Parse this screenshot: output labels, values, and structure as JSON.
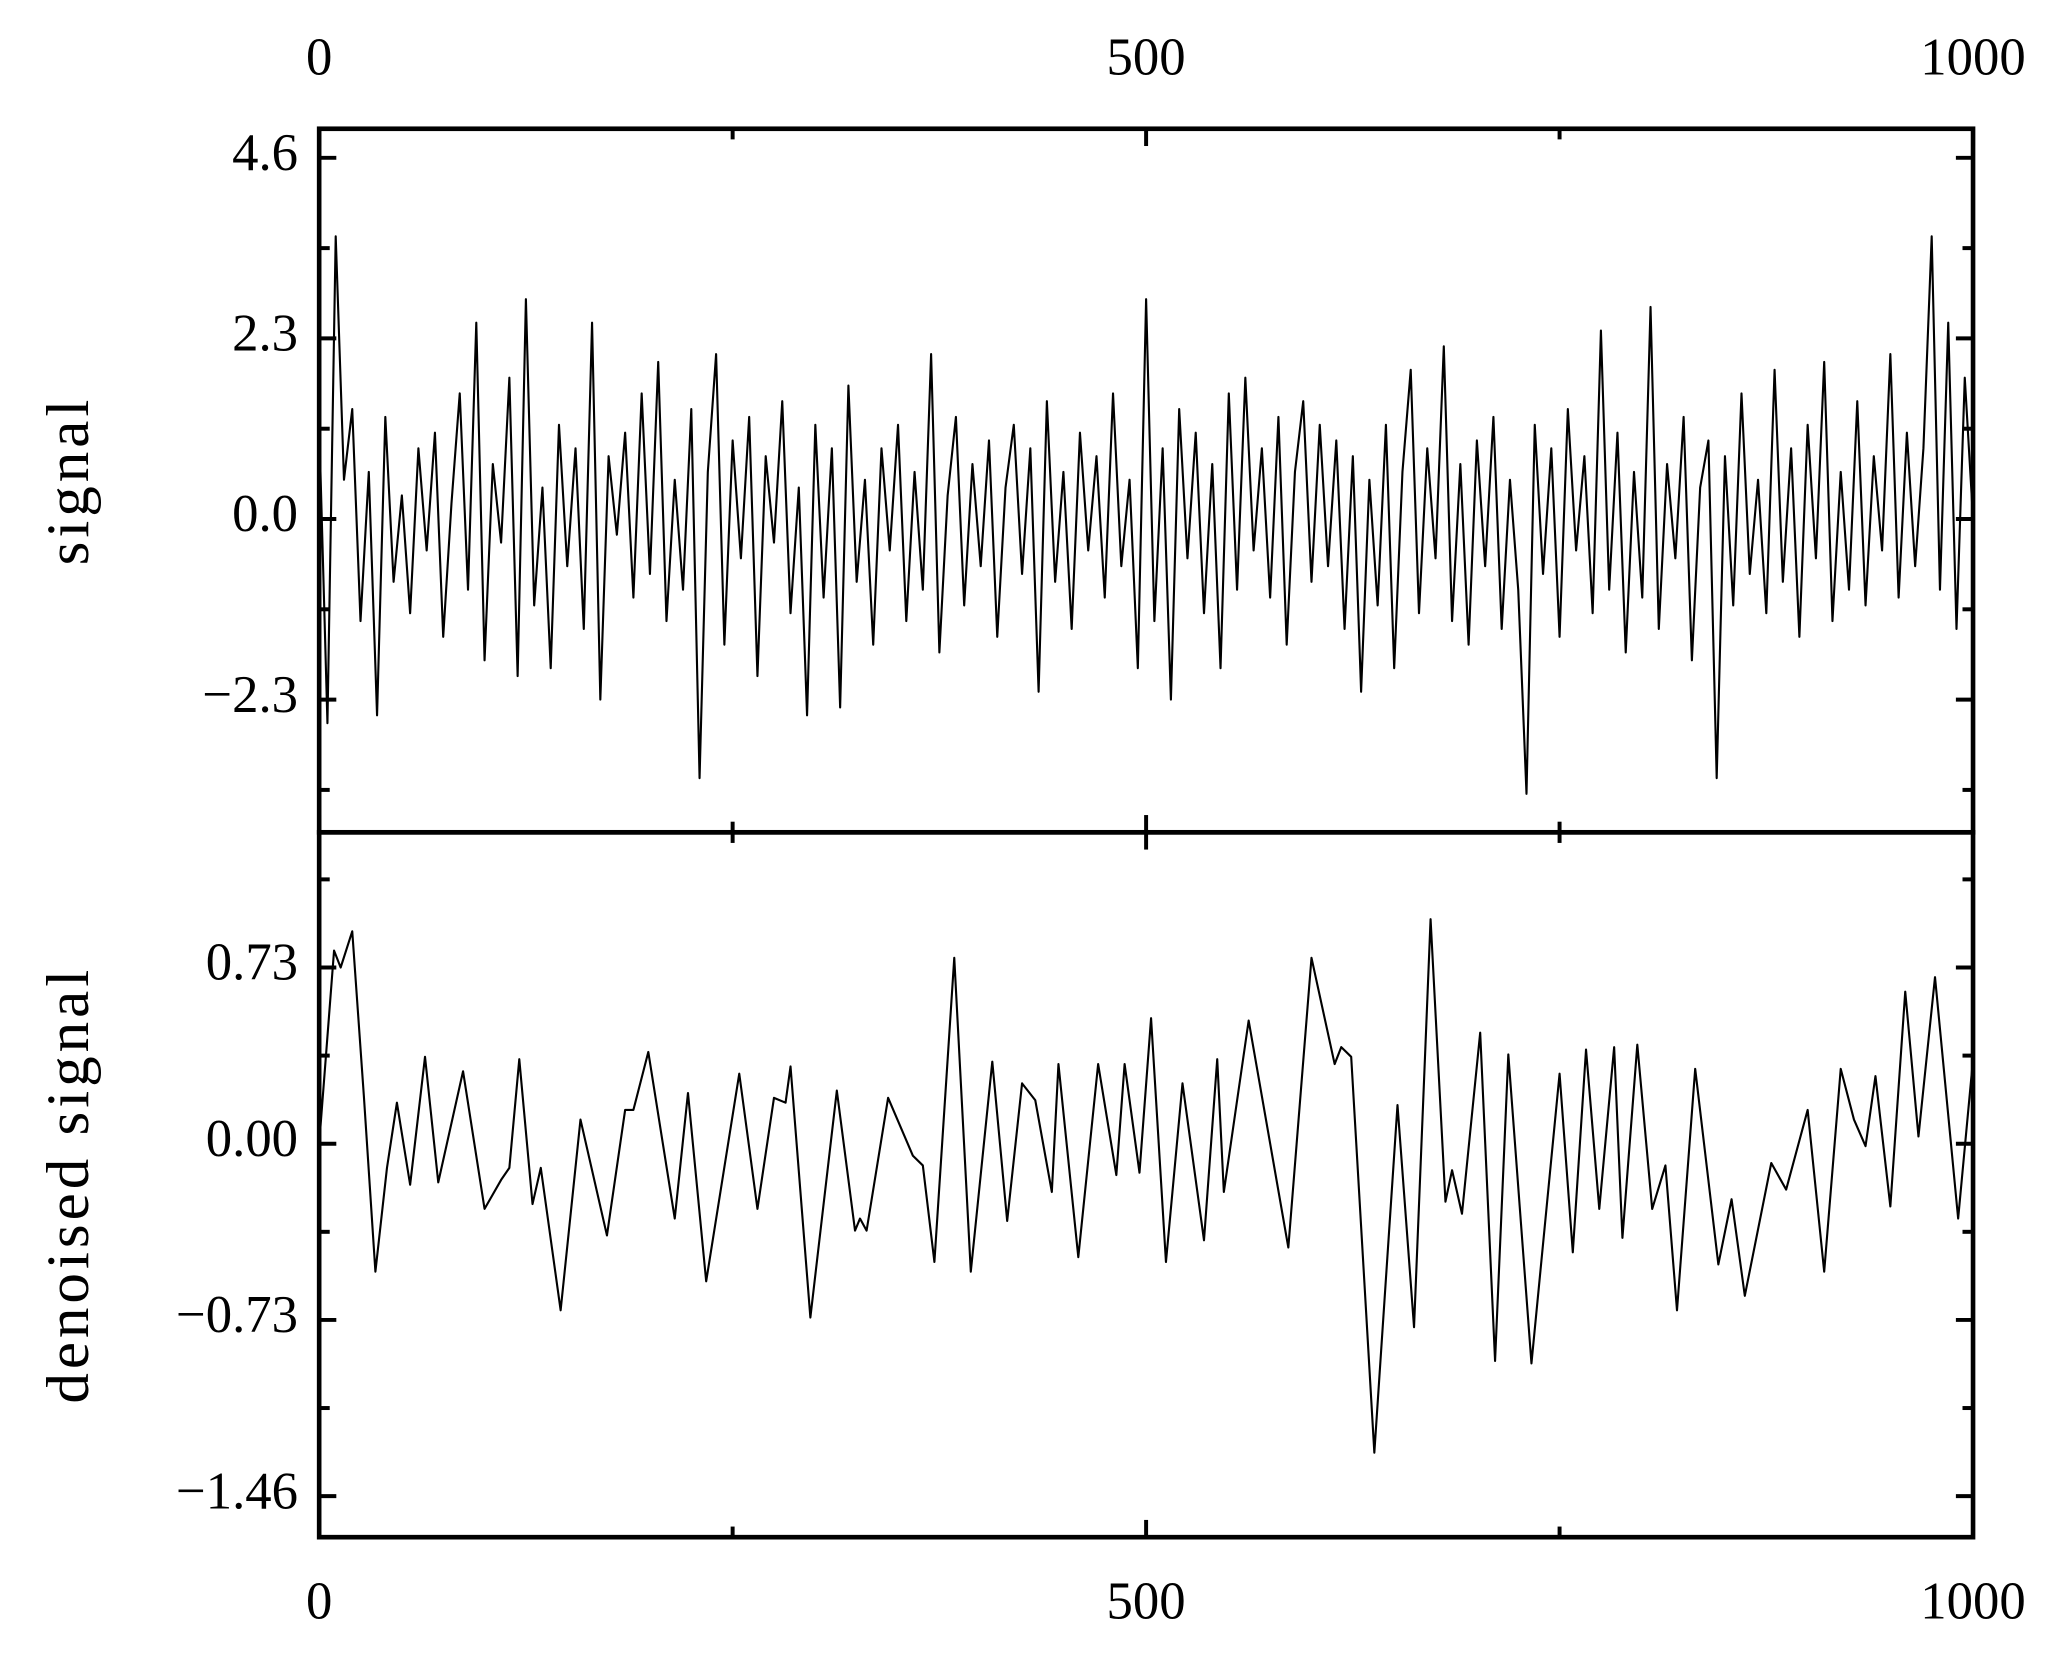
{
  "chart_data": [
    {
      "type": "line",
      "ylabel": "signal",
      "color": "#000000",
      "x": [
        0,
        5,
        10,
        15,
        20,
        25,
        30,
        35,
        40,
        45,
        50,
        55,
        60,
        65,
        70,
        75,
        80,
        85,
        90,
        95,
        100,
        105,
        110,
        115,
        120,
        125,
        130,
        135,
        140,
        145,
        150,
        155,
        160,
        165,
        170,
        175,
        180,
        185,
        190,
        195,
        200,
        205,
        210,
        215,
        220,
        225,
        230,
        235,
        240,
        245,
        250,
        255,
        260,
        265,
        270,
        275,
        280,
        285,
        290,
        295,
        300,
        305,
        310,
        315,
        320,
        325,
        330,
        335,
        340,
        345,
        350,
        355,
        360,
        365,
        370,
        375,
        380,
        385,
        390,
        395,
        400,
        405,
        410,
        415,
        420,
        425,
        430,
        435,
        440,
        445,
        450,
        455,
        460,
        465,
        470,
        475,
        480,
        485,
        490,
        495,
        500,
        505,
        510,
        515,
        520,
        525,
        530,
        535,
        540,
        545,
        550,
        555,
        560,
        565,
        570,
        575,
        580,
        585,
        590,
        595,
        600,
        605,
        610,
        615,
        620,
        625,
        630,
        635,
        640,
        645,
        650,
        655,
        660,
        665,
        670,
        675,
        680,
        685,
        690,
        695,
        700,
        705,
        710,
        715,
        720,
        725,
        730,
        735,
        740,
        745,
        750,
        755,
        760,
        765,
        770,
        775,
        780,
        785,
        790,
        795,
        800,
        805,
        810,
        815,
        820,
        825,
        830,
        835,
        840,
        845,
        850,
        855,
        860,
        865,
        870,
        875,
        880,
        885,
        890,
        895,
        900,
        905,
        910,
        915,
        920,
        925,
        930,
        935,
        940,
        945,
        950,
        955,
        960,
        965,
        970,
        975,
        980,
        985,
        990,
        995,
        1000
      ],
      "values": [
        1.2,
        -2.6,
        3.6,
        0.5,
        1.4,
        -1.3,
        0.6,
        -2.5,
        1.3,
        -0.8,
        0.3,
        -1.2,
        0.9,
        -0.4,
        1.1,
        -1.5,
        0.2,
        1.6,
        -0.9,
        2.5,
        -1.8,
        0.7,
        -0.3,
        1.8,
        -2.0,
        2.8,
        -1.1,
        0.4,
        -1.9,
        1.2,
        -0.6,
        0.9,
        -1.4,
        2.5,
        -2.3,
        0.8,
        -0.2,
        1.1,
        -1.0,
        1.6,
        -0.7,
        2.0,
        -1.3,
        0.5,
        -0.9,
        1.4,
        -3.3,
        0.6,
        2.1,
        -1.6,
        1.0,
        -0.5,
        1.3,
        -2.0,
        0.8,
        -0.3,
        1.5,
        -1.2,
        0.4,
        -2.5,
        1.2,
        -1.0,
        0.9,
        -2.4,
        1.7,
        -0.8,
        0.5,
        -1.6,
        0.9,
        -0.4,
        1.2,
        -1.3,
        0.6,
        -0.9,
        2.1,
        -1.7,
        0.3,
        1.3,
        -1.1,
        0.7,
        -0.6,
        1.0,
        -1.5,
        0.4,
        1.2,
        -0.7,
        0.9,
        -2.2,
        1.5,
        -0.8,
        0.6,
        -1.4,
        1.1,
        -0.4,
        0.8,
        -1.0,
        1.6,
        -0.6,
        0.5,
        -1.9,
        2.8,
        -1.3,
        0.9,
        -2.3,
        1.4,
        -0.5,
        1.1,
        -1.2,
        0.7,
        -1.9,
        1.6,
        -0.9,
        1.8,
        -0.4,
        0.9,
        -1.0,
        1.3,
        -1.6,
        0.6,
        1.5,
        -0.8,
        1.2,
        -0.6,
        1.0,
        -1.4,
        0.8,
        -2.2,
        0.5,
        -1.1,
        1.2,
        -1.9,
        0.6,
        1.9,
        -1.2,
        0.9,
        -0.5,
        2.2,
        -1.3,
        0.7,
        -1.6,
        1.0,
        -0.6,
        1.3,
        -1.4,
        0.5,
        -0.9,
        -3.5,
        1.2,
        -0.7,
        0.9,
        -1.5,
        1.4,
        -0.4,
        0.8,
        -1.2,
        2.4,
        -0.9,
        1.1,
        -1.7,
        0.6,
        -1.0,
        2.7,
        -1.4,
        0.7,
        -0.5,
        1.3,
        -1.8,
        0.4,
        1.0,
        -3.3,
        0.8,
        -1.1,
        1.6,
        -0.7,
        0.5,
        -1.2,
        1.9,
        -0.8,
        0.9,
        -1.5,
        1.2,
        -0.5,
        2.0,
        -1.3,
        0.6,
        -0.9,
        1.5,
        -1.1,
        0.8,
        -0.4,
        2.1,
        -1.0,
        1.1,
        -0.6,
        0.9,
        3.6,
        -0.9,
        2.5,
        -1.4,
        1.8,
        0.0
      ],
      "xlim": [
        0,
        1000
      ],
      "xticks": [
        0,
        500,
        1000
      ],
      "xminorticks": [
        250,
        750
      ],
      "ylim": [
        -3.99,
        4.97
      ],
      "yticks": [
        4.6,
        2.3,
        {
          "value": 0,
          "label": "0.0"
        },
        {
          "value": -2.3,
          "label": "−2.3"
        }
      ],
      "yminorticks": [
        3.45,
        1.15,
        -1.15,
        -3.45
      ]
    },
    {
      "type": "line",
      "ylabel": "denoised signal",
      "color": "#000000",
      "x": [
        0,
        9,
        13,
        20,
        27,
        34,
        41,
        47,
        55,
        64,
        72,
        87,
        100,
        110,
        115,
        121,
        129,
        134,
        146,
        158,
        174,
        185,
        190,
        199,
        215,
        223,
        234,
        254,
        265,
        275,
        282,
        285,
        297,
        313,
        324,
        327,
        331,
        344,
        359,
        365,
        372,
        384,
        394,
        407,
        416,
        425,
        433,
        443,
        447,
        459,
        471,
        482,
        487,
        496,
        503,
        512,
        522,
        535,
        543,
        547,
        562,
        586,
        600,
        614,
        618,
        624,
        638,
        652,
        662,
        672,
        681,
        685,
        691,
        702,
        711,
        719,
        733,
        750,
        758,
        766,
        774,
        783,
        788,
        797,
        806,
        814,
        821,
        832,
        846,
        854,
        862,
        878,
        887,
        900,
        910,
        920,
        928,
        935,
        941,
        950,
        959,
        967,
        977,
        991,
        1000
      ],
      "values": [
        0.0,
        0.8,
        0.73,
        0.88,
        0.2,
        -0.53,
        -0.1,
        0.17,
        -0.17,
        0.36,
        -0.16,
        0.3,
        -0.27,
        -0.15,
        -0.1,
        0.35,
        -0.25,
        -0.1,
        -0.69,
        0.1,
        -0.38,
        0.14,
        0.14,
        0.38,
        -0.31,
        0.21,
        -0.57,
        0.29,
        -0.27,
        0.19,
        0.17,
        0.32,
        -0.72,
        0.22,
        -0.36,
        -0.31,
        -0.36,
        0.19,
        -0.05,
        -0.09,
        -0.49,
        0.77,
        -0.53,
        0.34,
        -0.32,
        0.25,
        0.18,
        -0.2,
        0.33,
        -0.47,
        0.33,
        -0.13,
        0.33,
        -0.12,
        0.52,
        -0.49,
        0.25,
        -0.4,
        0.35,
        -0.2,
        0.51,
        -0.43,
        0.77,
        0.33,
        0.4,
        0.36,
        -1.28,
        0.16,
        -0.76,
        0.93,
        -0.24,
        -0.11,
        -0.29,
        0.46,
        -0.9,
        0.37,
        -0.91,
        0.29,
        -0.45,
        0.39,
        -0.27,
        0.4,
        -0.39,
        0.41,
        -0.27,
        -0.09,
        -0.69,
        0.31,
        -0.5,
        -0.23,
        -0.63,
        -0.08,
        -0.19,
        0.14,
        -0.53,
        0.31,
        0.1,
        -0.01,
        0.28,
        -0.26,
        0.63,
        0.03,
        0.69,
        -0.31,
        0.35
      ],
      "xlim": [
        0,
        1000
      ],
      "xticks": [
        0,
        500,
        1000
      ],
      "xminorticks": [
        250,
        750
      ],
      "ylim": [
        -1.63,
        1.29
      ],
      "yticks": [
        0.73,
        {
          "value": 0,
          "label": "0.00"
        },
        {
          "value": -0.73,
          "label": "−0.73"
        },
        {
          "value": -1.46,
          "label": "−1.46"
        }
      ],
      "yminorticks": [
        1.095,
        0.365,
        -0.365,
        -1.095
      ]
    }
  ]
}
